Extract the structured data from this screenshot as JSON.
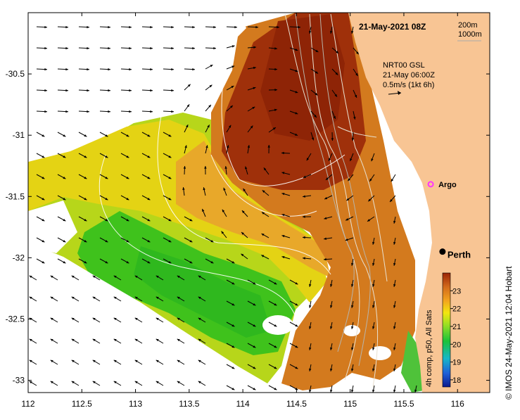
{
  "map": {
    "date_title": "21-May-2021 08Z",
    "depth_legend": [
      "200m",
      "1000m"
    ],
    "current_source": "NRT00 GSL",
    "current_time": "21-May 06:00Z",
    "current_scale": "0.5m/s (1kt 6h)",
    "credit": "© IMOS 24-May-2021 12:04 Hobart",
    "colorbar_label": "4h comp, p50, All Sats",
    "colorbar_ticks": [
      "23",
      "22",
      "21",
      "20",
      "19",
      "18"
    ],
    "colorbar_range": [
      17.6,
      24.0
    ],
    "x_ticks": [
      "112",
      "112.5",
      "113",
      "113.5",
      "114",
      "114.5",
      "115",
      "115.5",
      "116"
    ],
    "y_ticks": [
      "-30.5",
      "-31",
      "-31.5",
      "-32",
      "-32.5",
      "-33"
    ],
    "lon_range": [
      112.0,
      116.3
    ],
    "lat_range": [
      -33.1,
      -30.0
    ],
    "places": [
      {
        "name": "Argo",
        "lon": 115.75,
        "lat": -31.4,
        "color": "#ff33ff"
      },
      {
        "name": "Perth",
        "lon": 115.86,
        "lat": -31.95,
        "color": "#000000"
      }
    ]
  }
}
